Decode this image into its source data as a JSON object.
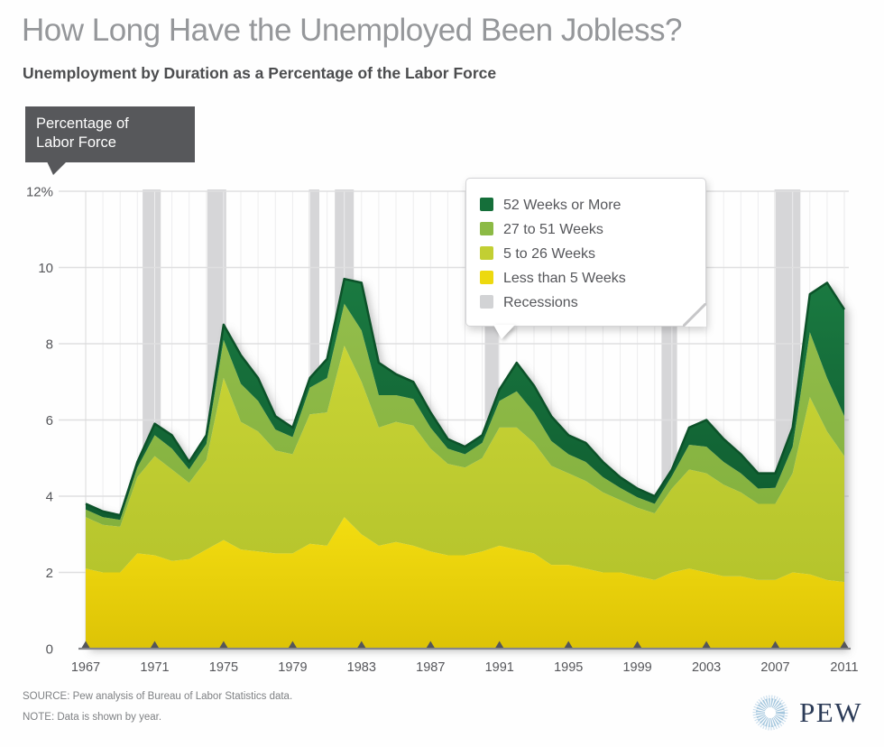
{
  "title": "How Long Have the Unemployed Been Jobless?",
  "subtitle": "Unemployment by Duration as a Percentage of the Labor Force",
  "callout": {
    "line1": "Percentage of",
    "line2": "Labor Force"
  },
  "legend": {
    "items": [
      {
        "label": "52 Weeks or More",
        "color": "#156f3a"
      },
      {
        "label": "27 to 51 Weeks",
        "color": "#8cba45"
      },
      {
        "label": "5 to 26 Weeks",
        "color": "#c2cf33"
      },
      {
        "label": "Less than 5 Weeks",
        "color": "#edd90f"
      },
      {
        "label": "Recessions",
        "color": "#d2d3d5"
      }
    ]
  },
  "footer": {
    "source": "SOURCE: Pew analysis of Bureau of Labor Statistics data.",
    "note": "NOTE: Data is shown by year.",
    "brand": "PEW"
  },
  "chart_data": {
    "type": "area",
    "stacked": true,
    "title": "",
    "xlabel": "",
    "ylabel": "Percentage of Labor Force",
    "xlim": [
      1967,
      2011
    ],
    "ylim": [
      0,
      12
    ],
    "grid": true,
    "legend_position": "upper right",
    "xticks": [
      1967,
      1971,
      1975,
      1979,
      1983,
      1987,
      1991,
      1995,
      1999,
      2003,
      2007,
      2011
    ],
    "yticks": [
      12,
      10,
      8,
      6,
      4,
      2,
      0
    ],
    "ytick_labels": [
      "12%",
      "10",
      "8",
      "6",
      "4",
      "2",
      "0"
    ],
    "x": [
      1967,
      1968,
      1969,
      1970,
      1971,
      1972,
      1973,
      1974,
      1975,
      1976,
      1977,
      1978,
      1979,
      1980,
      1981,
      1982,
      1983,
      1984,
      1985,
      1986,
      1987,
      1988,
      1989,
      1990,
      1991,
      1992,
      1993,
      1994,
      1995,
      1996,
      1997,
      1998,
      1999,
      2000,
      2001,
      2002,
      2003,
      2004,
      2005,
      2006,
      2007,
      2008,
      2009,
      2010,
      2011
    ],
    "series": [
      {
        "name": "Less than 5 Weeks",
        "color": "#edd90f",
        "color_top": "#f3dd10",
        "color_bottom": "#ddc306",
        "values": [
          2.1,
          2.0,
          2.0,
          2.5,
          2.45,
          2.3,
          2.35,
          2.6,
          2.85,
          2.6,
          2.55,
          2.5,
          2.5,
          2.75,
          2.7,
          3.45,
          3.0,
          2.7,
          2.8,
          2.7,
          2.55,
          2.45,
          2.45,
          2.55,
          2.7,
          2.6,
          2.5,
          2.2,
          2.2,
          2.1,
          2.0,
          2.0,
          1.9,
          1.8,
          2.0,
          2.1,
          2.0,
          1.9,
          1.9,
          1.8,
          1.8,
          2.0,
          1.95,
          1.8,
          1.75
        ]
      },
      {
        "name": "5 to 26 Weeks",
        "color": "#c2cf33",
        "color_top": "#c9d435",
        "color_bottom": "#b5c42c",
        "values": [
          1.35,
          1.25,
          1.2,
          2.0,
          2.6,
          2.4,
          2.0,
          2.35,
          4.25,
          3.35,
          3.15,
          2.7,
          2.6,
          3.4,
          3.5,
          4.5,
          4.0,
          3.1,
          3.15,
          3.15,
          2.7,
          2.4,
          2.3,
          2.45,
          3.1,
          3.2,
          2.9,
          2.6,
          2.4,
          2.3,
          2.1,
          1.9,
          1.8,
          1.75,
          2.2,
          2.6,
          2.6,
          2.4,
          2.2,
          2.0,
          2.0,
          2.6,
          4.65,
          3.9,
          3.3
        ]
      },
      {
        "name": "27 to 51 Weeks",
        "color": "#8cba45",
        "color_top": "#93bd4b",
        "color_bottom": "#83b13e",
        "values": [
          0.2,
          0.2,
          0.18,
          0.25,
          0.55,
          0.55,
          0.35,
          0.42,
          1.0,
          1.0,
          0.8,
          0.55,
          0.45,
          0.7,
          0.9,
          1.1,
          1.35,
          0.85,
          0.7,
          0.7,
          0.55,
          0.4,
          0.35,
          0.4,
          0.7,
          0.95,
          0.8,
          0.65,
          0.5,
          0.5,
          0.4,
          0.32,
          0.27,
          0.25,
          0.33,
          0.65,
          0.7,
          0.6,
          0.5,
          0.4,
          0.42,
          0.7,
          1.7,
          1.4,
          1.05
        ]
      },
      {
        "name": "52 Weeks or More",
        "color": "#156f3a",
        "color_top": "#1a7a41",
        "color_bottom": "#0f5c30",
        "values": [
          0.15,
          0.15,
          0.12,
          0.15,
          0.3,
          0.35,
          0.2,
          0.23,
          0.4,
          0.75,
          0.6,
          0.35,
          0.25,
          0.25,
          0.5,
          0.65,
          1.25,
          0.85,
          0.55,
          0.45,
          0.4,
          0.25,
          0.2,
          0.2,
          0.3,
          0.75,
          0.7,
          0.65,
          0.5,
          0.5,
          0.4,
          0.28,
          0.23,
          0.2,
          0.17,
          0.45,
          0.7,
          0.6,
          0.5,
          0.4,
          0.38,
          0.5,
          1.0,
          2.5,
          2.8
        ]
      }
    ],
    "recessions": [
      [
        1970.3,
        1971.35
      ],
      [
        1974.05,
        1975.15
      ],
      [
        1979.95,
        1980.55
      ],
      [
        1981.45,
        1982.55
      ],
      [
        1990.15,
        1990.95
      ],
      [
        2000.4,
        2001.3
      ],
      [
        2006.95,
        2008.45
      ]
    ],
    "recession_color": "#d6d6d8",
    "top_line_color": "#0c5229"
  }
}
